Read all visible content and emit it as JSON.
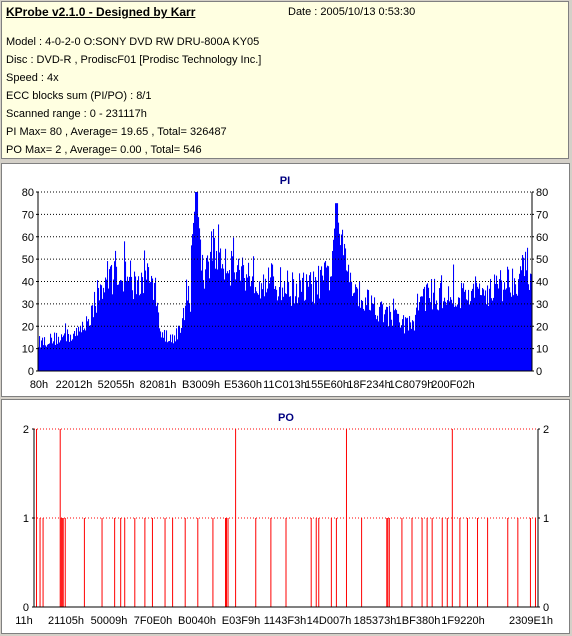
{
  "header": {
    "title": "KProbe v2.1.0 - Designed by Karr",
    "date": "Date : 2005/10/13 0:53:30",
    "lines": [
      "Model : 4-0-2-0 O:SONY    DVD RW DRU-800A  KY05",
      "Disc : DVD-R , ProdiscF01 [Prodisc Technology Inc.]",
      "Speed : 4x",
      "ECC blocks sum (PI/PO) : 8/1",
      "Scanned range : 0 - 231117h",
      "PI Max= 80 , Average= 19.65 , Total= 326487",
      "PO Max= 2 , Average= 0.00 , Total= 546"
    ]
  },
  "colors": {
    "pi_bars": "#0000ff",
    "po_bars": "#ff0000",
    "grid_pi": "#000000",
    "grid_po": "#ff0000",
    "title": "#000080"
  },
  "chart_data": [
    {
      "type": "bar",
      "title": "PI",
      "ylim": [
        0,
        80
      ],
      "yticks": [
        0,
        10,
        20,
        30,
        40,
        50,
        60,
        70,
        80
      ],
      "x_tick_labels": [
        "80h",
        "22012h",
        "52055h",
        "82081h",
        "B3009h",
        "E5360h",
        "11C013h",
        "155E60h",
        "18F234h",
        "1C8079h",
        "200F02h"
      ],
      "grid": true,
      "profile_x": [
        0,
        0.04,
        0.08,
        0.1,
        0.12,
        0.14,
        0.16,
        0.17,
        0.18,
        0.185,
        0.2,
        0.22,
        0.24,
        0.25,
        0.26,
        0.28,
        0.29,
        0.3,
        0.31,
        0.32,
        0.33,
        0.345,
        0.36,
        0.38,
        0.4,
        0.42,
        0.44,
        0.46,
        0.48,
        0.5,
        0.52,
        0.54,
        0.56,
        0.58,
        0.6,
        0.61,
        0.62,
        0.64,
        0.66,
        0.68,
        0.7,
        0.72,
        0.74,
        0.76,
        0.77,
        0.78,
        0.8,
        0.82,
        0.84,
        0.86,
        0.88,
        0.9,
        0.92,
        0.94,
        0.96,
        0.98,
        1.0
      ],
      "profile_y": [
        14,
        16,
        18,
        25,
        35,
        45,
        50,
        47,
        45,
        40,
        42,
        45,
        38,
        16,
        14,
        18,
        22,
        30,
        35,
        40,
        45,
        55,
        60,
        55,
        50,
        48,
        46,
        44,
        43,
        41,
        40,
        40,
        41,
        44,
        52,
        60,
        55,
        43,
        35,
        33,
        28,
        26,
        23,
        22,
        33,
        37,
        37,
        36,
        36,
        37,
        38,
        39,
        40,
        42,
        45,
        48,
        50
      ],
      "peaks": [
        {
          "x": 0.32,
          "y": 80
        },
        {
          "x": 0.605,
          "y": 75
        }
      ]
    },
    {
      "type": "bar",
      "title": "PO",
      "ylim": [
        0,
        2
      ],
      "yticks": [
        0,
        1,
        2
      ],
      "x_tick_labels": [
        "11h",
        "21105h",
        "50009h",
        "7F0E0h",
        "B0040h",
        "E03F9h",
        "1143F3h",
        "14D007h",
        "185373h",
        "1BF380h",
        "1F9220h",
        "2309E1h"
      ],
      "grid": true,
      "events": [
        {
          "x": 0.005,
          "v": 2
        },
        {
          "x": 0.012,
          "v": 1
        },
        {
          "x": 0.018,
          "v": 1
        },
        {
          "x": 0.052,
          "v": 2
        },
        {
          "x": 0.054,
          "v": 1
        },
        {
          "x": 0.056,
          "v": 1
        },
        {
          "x": 0.058,
          "v": 1
        },
        {
          "x": 0.062,
          "v": 1
        },
        {
          "x": 0.1,
          "v": 1
        },
        {
          "x": 0.135,
          "v": 1
        },
        {
          "x": 0.16,
          "v": 1
        },
        {
          "x": 0.172,
          "v": 1
        },
        {
          "x": 0.18,
          "v": 1
        },
        {
          "x": 0.2,
          "v": 1
        },
        {
          "x": 0.22,
          "v": 1
        },
        {
          "x": 0.235,
          "v": 1
        },
        {
          "x": 0.26,
          "v": 1
        },
        {
          "x": 0.275,
          "v": 1
        },
        {
          "x": 0.3,
          "v": 1
        },
        {
          "x": 0.325,
          "v": 1
        },
        {
          "x": 0.355,
          "v": 1
        },
        {
          "x": 0.38,
          "v": 1
        },
        {
          "x": 0.382,
          "v": 1
        },
        {
          "x": 0.385,
          "v": 1
        },
        {
          "x": 0.4,
          "v": 2
        },
        {
          "x": 0.44,
          "v": 1
        },
        {
          "x": 0.47,
          "v": 1
        },
        {
          "x": 0.5,
          "v": 1
        },
        {
          "x": 0.55,
          "v": 1
        },
        {
          "x": 0.56,
          "v": 1
        },
        {
          "x": 0.565,
          "v": 1
        },
        {
          "x": 0.59,
          "v": 1
        },
        {
          "x": 0.6,
          "v": 1
        },
        {
          "x": 0.62,
          "v": 2
        },
        {
          "x": 0.65,
          "v": 1
        },
        {
          "x": 0.7,
          "v": 1
        },
        {
          "x": 0.702,
          "v": 1
        },
        {
          "x": 0.705,
          "v": 1
        },
        {
          "x": 0.73,
          "v": 1
        },
        {
          "x": 0.75,
          "v": 1
        },
        {
          "x": 0.77,
          "v": 1
        },
        {
          "x": 0.78,
          "v": 1
        },
        {
          "x": 0.79,
          "v": 1
        },
        {
          "x": 0.81,
          "v": 1
        },
        {
          "x": 0.82,
          "v": 1
        },
        {
          "x": 0.83,
          "v": 2
        },
        {
          "x": 0.845,
          "v": 1
        },
        {
          "x": 0.86,
          "v": 1
        },
        {
          "x": 0.88,
          "v": 1
        },
        {
          "x": 0.9,
          "v": 1
        },
        {
          "x": 0.94,
          "v": 1
        },
        {
          "x": 0.96,
          "v": 1
        },
        {
          "x": 0.985,
          "v": 1
        },
        {
          "x": 0.995,
          "v": 1
        }
      ]
    }
  ]
}
